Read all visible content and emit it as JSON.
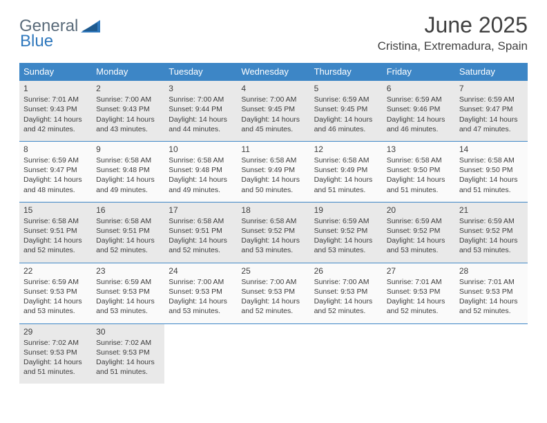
{
  "logo": {
    "word1": "General",
    "word2": "Blue"
  },
  "title": "June 2025",
  "location": "Cristina, Extremadura, Spain",
  "dayHeaders": [
    "Sunday",
    "Monday",
    "Tuesday",
    "Wednesday",
    "Thursday",
    "Friday",
    "Saturday"
  ],
  "colors": {
    "headerBg": "#3d86c6",
    "grayRowBg": "#e9e9e9",
    "whiteRowBg": "#fafafa",
    "borderColor": "#3d86c6",
    "logoGray": "#5a6b7a",
    "logoBlue": "#2f78bd"
  },
  "weeks": [
    {
      "gray": true,
      "days": [
        {
          "n": "1",
          "sunrise": "Sunrise: 7:01 AM",
          "sunset": "Sunset: 9:43 PM",
          "d1": "Daylight: 14 hours",
          "d2": "and 42 minutes."
        },
        {
          "n": "2",
          "sunrise": "Sunrise: 7:00 AM",
          "sunset": "Sunset: 9:43 PM",
          "d1": "Daylight: 14 hours",
          "d2": "and 43 minutes."
        },
        {
          "n": "3",
          "sunrise": "Sunrise: 7:00 AM",
          "sunset": "Sunset: 9:44 PM",
          "d1": "Daylight: 14 hours",
          "d2": "and 44 minutes."
        },
        {
          "n": "4",
          "sunrise": "Sunrise: 7:00 AM",
          "sunset": "Sunset: 9:45 PM",
          "d1": "Daylight: 14 hours",
          "d2": "and 45 minutes."
        },
        {
          "n": "5",
          "sunrise": "Sunrise: 6:59 AM",
          "sunset": "Sunset: 9:45 PM",
          "d1": "Daylight: 14 hours",
          "d2": "and 46 minutes."
        },
        {
          "n": "6",
          "sunrise": "Sunrise: 6:59 AM",
          "sunset": "Sunset: 9:46 PM",
          "d1": "Daylight: 14 hours",
          "d2": "and 46 minutes."
        },
        {
          "n": "7",
          "sunrise": "Sunrise: 6:59 AM",
          "sunset": "Sunset: 9:47 PM",
          "d1": "Daylight: 14 hours",
          "d2": "and 47 minutes."
        }
      ]
    },
    {
      "gray": false,
      "days": [
        {
          "n": "8",
          "sunrise": "Sunrise: 6:59 AM",
          "sunset": "Sunset: 9:47 PM",
          "d1": "Daylight: 14 hours",
          "d2": "and 48 minutes."
        },
        {
          "n": "9",
          "sunrise": "Sunrise: 6:58 AM",
          "sunset": "Sunset: 9:48 PM",
          "d1": "Daylight: 14 hours",
          "d2": "and 49 minutes."
        },
        {
          "n": "10",
          "sunrise": "Sunrise: 6:58 AM",
          "sunset": "Sunset: 9:48 PM",
          "d1": "Daylight: 14 hours",
          "d2": "and 49 minutes."
        },
        {
          "n": "11",
          "sunrise": "Sunrise: 6:58 AM",
          "sunset": "Sunset: 9:49 PM",
          "d1": "Daylight: 14 hours",
          "d2": "and 50 minutes."
        },
        {
          "n": "12",
          "sunrise": "Sunrise: 6:58 AM",
          "sunset": "Sunset: 9:49 PM",
          "d1": "Daylight: 14 hours",
          "d2": "and 51 minutes."
        },
        {
          "n": "13",
          "sunrise": "Sunrise: 6:58 AM",
          "sunset": "Sunset: 9:50 PM",
          "d1": "Daylight: 14 hours",
          "d2": "and 51 minutes."
        },
        {
          "n": "14",
          "sunrise": "Sunrise: 6:58 AM",
          "sunset": "Sunset: 9:50 PM",
          "d1": "Daylight: 14 hours",
          "d2": "and 51 minutes."
        }
      ]
    },
    {
      "gray": true,
      "days": [
        {
          "n": "15",
          "sunrise": "Sunrise: 6:58 AM",
          "sunset": "Sunset: 9:51 PM",
          "d1": "Daylight: 14 hours",
          "d2": "and 52 minutes."
        },
        {
          "n": "16",
          "sunrise": "Sunrise: 6:58 AM",
          "sunset": "Sunset: 9:51 PM",
          "d1": "Daylight: 14 hours",
          "d2": "and 52 minutes."
        },
        {
          "n": "17",
          "sunrise": "Sunrise: 6:58 AM",
          "sunset": "Sunset: 9:51 PM",
          "d1": "Daylight: 14 hours",
          "d2": "and 52 minutes."
        },
        {
          "n": "18",
          "sunrise": "Sunrise: 6:58 AM",
          "sunset": "Sunset: 9:52 PM",
          "d1": "Daylight: 14 hours",
          "d2": "and 53 minutes."
        },
        {
          "n": "19",
          "sunrise": "Sunrise: 6:59 AM",
          "sunset": "Sunset: 9:52 PM",
          "d1": "Daylight: 14 hours",
          "d2": "and 53 minutes."
        },
        {
          "n": "20",
          "sunrise": "Sunrise: 6:59 AM",
          "sunset": "Sunset: 9:52 PM",
          "d1": "Daylight: 14 hours",
          "d2": "and 53 minutes."
        },
        {
          "n": "21",
          "sunrise": "Sunrise: 6:59 AM",
          "sunset": "Sunset: 9:52 PM",
          "d1": "Daylight: 14 hours",
          "d2": "and 53 minutes."
        }
      ]
    },
    {
      "gray": false,
      "days": [
        {
          "n": "22",
          "sunrise": "Sunrise: 6:59 AM",
          "sunset": "Sunset: 9:53 PM",
          "d1": "Daylight: 14 hours",
          "d2": "and 53 minutes."
        },
        {
          "n": "23",
          "sunrise": "Sunrise: 6:59 AM",
          "sunset": "Sunset: 9:53 PM",
          "d1": "Daylight: 14 hours",
          "d2": "and 53 minutes."
        },
        {
          "n": "24",
          "sunrise": "Sunrise: 7:00 AM",
          "sunset": "Sunset: 9:53 PM",
          "d1": "Daylight: 14 hours",
          "d2": "and 53 minutes."
        },
        {
          "n": "25",
          "sunrise": "Sunrise: 7:00 AM",
          "sunset": "Sunset: 9:53 PM",
          "d1": "Daylight: 14 hours",
          "d2": "and 52 minutes."
        },
        {
          "n": "26",
          "sunrise": "Sunrise: 7:00 AM",
          "sunset": "Sunset: 9:53 PM",
          "d1": "Daylight: 14 hours",
          "d2": "and 52 minutes."
        },
        {
          "n": "27",
          "sunrise": "Sunrise: 7:01 AM",
          "sunset": "Sunset: 9:53 PM",
          "d1": "Daylight: 14 hours",
          "d2": "and 52 minutes."
        },
        {
          "n": "28",
          "sunrise": "Sunrise: 7:01 AM",
          "sunset": "Sunset: 9:53 PM",
          "d1": "Daylight: 14 hours",
          "d2": "and 52 minutes."
        }
      ]
    },
    {
      "gray": true,
      "days": [
        {
          "n": "29",
          "sunrise": "Sunrise: 7:02 AM",
          "sunset": "Sunset: 9:53 PM",
          "d1": "Daylight: 14 hours",
          "d2": "and 51 minutes."
        },
        {
          "n": "30",
          "sunrise": "Sunrise: 7:02 AM",
          "sunset": "Sunset: 9:53 PM",
          "d1": "Daylight: 14 hours",
          "d2": "and 51 minutes."
        },
        {
          "empty": true
        },
        {
          "empty": true
        },
        {
          "empty": true
        },
        {
          "empty": true
        },
        {
          "empty": true
        }
      ]
    }
  ]
}
